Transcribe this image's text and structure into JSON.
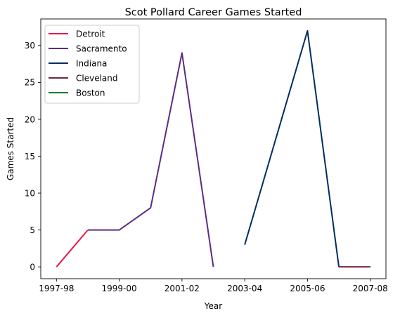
{
  "chart_data": {
    "type": "line",
    "title": "Scot Pollard Career Games Started",
    "xlabel": "Year",
    "ylabel": "Games Started",
    "x_tick_labels": [
      "1997-98",
      "1999-00",
      "2001-02",
      "2003-04",
      "2005-06",
      "2007-08"
    ],
    "y_ticks": [
      0,
      5,
      10,
      15,
      20,
      25,
      30
    ],
    "xlim": [
      -0.5,
      10.5
    ],
    "ylim": [
      -1.6,
      33.6
    ],
    "grid": false,
    "legend_position": "top-left",
    "series": [
      {
        "name": "Detroit",
        "color": "#e31a4a",
        "points": [
          [
            0,
            0
          ],
          [
            1,
            5
          ]
        ]
      },
      {
        "name": "Sacramento",
        "color": "#5a2d81",
        "points": [
          [
            1,
            5
          ],
          [
            2,
            5
          ],
          [
            3,
            8
          ],
          [
            4,
            29
          ],
          [
            5,
            0
          ]
        ]
      },
      {
        "name": "Indiana",
        "color": "#002d62",
        "points": [
          [
            6,
            3
          ],
          [
            8,
            32
          ],
          [
            9,
            0
          ]
        ]
      },
      {
        "name": "Cleveland",
        "color": "#6f263d",
        "points": [
          [
            9,
            0
          ],
          [
            10,
            0
          ]
        ]
      },
      {
        "name": "Boston",
        "color": "#007a33",
        "points": [
          [
            10,
            0
          ]
        ]
      }
    ]
  }
}
